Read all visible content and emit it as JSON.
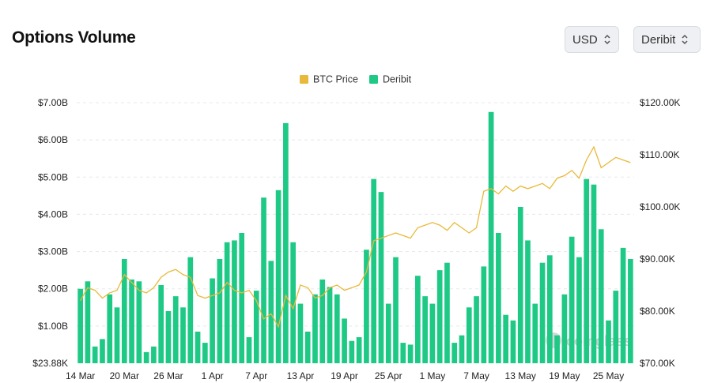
{
  "header": {
    "title": "Options Volume",
    "currency_select": "USD",
    "exchange_select": "Deribit"
  },
  "watermark": "coinglass",
  "colors": {
    "volume": "#1ec985",
    "price": "#e8b93b",
    "grid": "#e6e8eb"
  },
  "chart_data": {
    "type": "bar",
    "title": "Options Volume",
    "legend": [
      "BTC Price",
      "Deribit"
    ],
    "legend_position": "top-center",
    "grid": true,
    "x_tick_labels": [
      "14 Mar",
      "20 Mar",
      "26 Mar",
      "1 Apr",
      "7 Apr",
      "13 Apr",
      "19 Apr",
      "25 Apr",
      "1 May",
      "7 May",
      "13 May",
      "19 May",
      "25 May"
    ],
    "y_left_tick_labels": [
      "$23.88K",
      "$1.00B",
      "$2.00B",
      "$3.00B",
      "$4.00B",
      "$5.00B",
      "$6.00B",
      "$7.00B"
    ],
    "y_right_tick_labels": [
      "$70.00K",
      "$80.00K",
      "$90.00K",
      "$100.00K",
      "$110.00K",
      "$120.00K"
    ],
    "y_left_lim": [
      0,
      7.0
    ],
    "y_right_lim": [
      70000,
      120000
    ],
    "series": [
      {
        "name": "Deribit",
        "axis": "left",
        "unit": "$B",
        "values": [
          2.0,
          2.2,
          0.45,
          0.65,
          1.85,
          1.5,
          2.8,
          2.25,
          2.2,
          0.3,
          0.45,
          2.1,
          1.4,
          1.8,
          1.5,
          2.85,
          0.85,
          0.55,
          2.28,
          2.8,
          3.25,
          3.3,
          3.5,
          0.7,
          1.95,
          4.45,
          2.75,
          4.65,
          6.45,
          3.25,
          1.6,
          0.85,
          1.85,
          2.25,
          2.05,
          1.85,
          1.2,
          0.6,
          0.7,
          3.05,
          4.95,
          4.6,
          1.6,
          2.85,
          0.55,
          0.5,
          2.35,
          1.8,
          1.6,
          2.5,
          2.7,
          0.55,
          0.75,
          1.5,
          1.8,
          2.6,
          6.75,
          3.5,
          1.3,
          1.15,
          4.2,
          3.3,
          1.6,
          2.7,
          2.9,
          0.75,
          1.85,
          3.4,
          2.85,
          4.95,
          4.8,
          3.6,
          1.15,
          1.95,
          3.1,
          2.8
        ]
      },
      {
        "name": "BTC Price",
        "axis": "right",
        "type": "line",
        "values": [
          82000,
          84500,
          84000,
          82500,
          83500,
          84000,
          87000,
          85500,
          84000,
          83500,
          84500,
          86500,
          87500,
          88000,
          87000,
          86500,
          83000,
          82500,
          83000,
          83500,
          85500,
          84000,
          83500,
          84000,
          82000,
          78500,
          79500,
          77000,
          83000,
          80500,
          85000,
          84500,
          82500,
          83000,
          84500,
          85000,
          84000,
          84500,
          85000,
          87500,
          93500,
          94000,
          94500,
          95000,
          94500,
          94000,
          96000,
          96500,
          97000,
          96500,
          95500,
          97000,
          96000,
          95000,
          96000,
          103000,
          103500,
          102500,
          104000,
          103000,
          104000,
          103500,
          104000,
          104500,
          103500,
          105500,
          106000,
          107000,
          105500,
          109000,
          111500,
          107500,
          108500,
          109500,
          109000,
          108500
        ]
      }
    ]
  }
}
